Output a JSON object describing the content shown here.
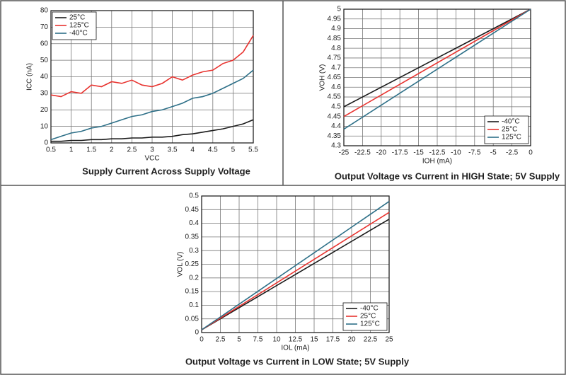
{
  "chart_data": [
    {
      "type": "line",
      "title": "Supply Current Across Supply Voltage",
      "xlabel": "VCC",
      "ylabel": "ICC (nA)",
      "x": [
        0.5,
        0.75,
        1,
        1.25,
        1.5,
        1.75,
        2,
        2.25,
        2.5,
        2.75,
        3,
        3.25,
        3.5,
        3.75,
        4,
        4.25,
        4.5,
        4.75,
        5,
        5.25,
        5.5
      ],
      "series": [
        {
          "name": "25°C",
          "color": "#1a1a1a",
          "values": [
            1,
            1,
            1.5,
            1.5,
            2,
            2,
            2.5,
            2.5,
            3,
            3,
            3.5,
            3.5,
            4,
            5,
            5.5,
            6.5,
            7.5,
            8.5,
            10,
            11.5,
            14
          ]
        },
        {
          "name": "125°C",
          "color": "#e8332f",
          "values": [
            29,
            28,
            31,
            30,
            35,
            34,
            37,
            36,
            38,
            35,
            34,
            36,
            40,
            38,
            41,
            43,
            44,
            48,
            50,
            55,
            65
          ]
        },
        {
          "name": "-40°C",
          "color": "#2e7088",
          "values": [
            2,
            4,
            6,
            7,
            9,
            10,
            12,
            14,
            16,
            17,
            19,
            20,
            22,
            24,
            27,
            28,
            30,
            33,
            36,
            39,
            44
          ]
        }
      ],
      "xlim": [
        0.5,
        5.5
      ],
      "xticks": [
        0.5,
        1,
        1.5,
        2,
        2.5,
        3,
        3.5,
        4,
        4.5,
        5,
        5.5
      ],
      "ylim": [
        0,
        80
      ],
      "yticks": [
        0,
        10,
        20,
        30,
        40,
        50,
        60,
        70,
        80
      ],
      "grid": true,
      "legend": "upper left"
    },
    {
      "type": "line",
      "title": "Output Voltage vs Current in HIGH State; 5V Supply",
      "xlabel": "IOH (mA)",
      "ylabel": "VOH (V)",
      "x": [
        -25,
        0
      ],
      "series": [
        {
          "name": "-40°C",
          "color": "#1a1a1a",
          "values": [
            4.5,
            5
          ]
        },
        {
          "name": "25°C",
          "color": "#e8332f",
          "values": [
            4.45,
            5
          ]
        },
        {
          "name": "125°C",
          "color": "#2e7088",
          "values": [
            4.385,
            5
          ]
        }
      ],
      "xlim": [
        -25,
        0
      ],
      "xticks": [
        -25,
        -22.5,
        -20,
        -17.5,
        -15,
        -12.5,
        -10,
        -7.5,
        -5,
        -2.5,
        0
      ],
      "ylim": [
        4.3,
        5
      ],
      "yticks": [
        4.3,
        4.35,
        4.4,
        4.45,
        4.5,
        4.55,
        4.6,
        4.65,
        4.7,
        4.75,
        4.8,
        4.85,
        4.9,
        4.95,
        5
      ],
      "grid": true,
      "legend": "lower right"
    },
    {
      "type": "line",
      "title": "Output Voltage vs Current in LOW State; 5V Supply",
      "xlabel": "IOL (mA)",
      "ylabel": "VOL (V)",
      "x": [
        0,
        25
      ],
      "series": [
        {
          "name": "-40°C",
          "color": "#1a1a1a",
          "values": [
            0.01,
            0.415
          ]
        },
        {
          "name": "25°C",
          "color": "#e8332f",
          "values": [
            0.01,
            0.44
          ]
        },
        {
          "name": "125°C",
          "color": "#2e7088",
          "values": [
            0.01,
            0.48
          ]
        }
      ],
      "xlim": [
        0,
        25
      ],
      "xticks": [
        0,
        2.5,
        5,
        7.5,
        10,
        12.5,
        15,
        17.5,
        20,
        22.5,
        25
      ],
      "ylim": [
        0,
        0.5
      ],
      "yticks": [
        0,
        0.05,
        0.1,
        0.15,
        0.2,
        0.25,
        0.3,
        0.35,
        0.4,
        0.45,
        0.5
      ],
      "grid": true,
      "legend": "lower right"
    }
  ]
}
